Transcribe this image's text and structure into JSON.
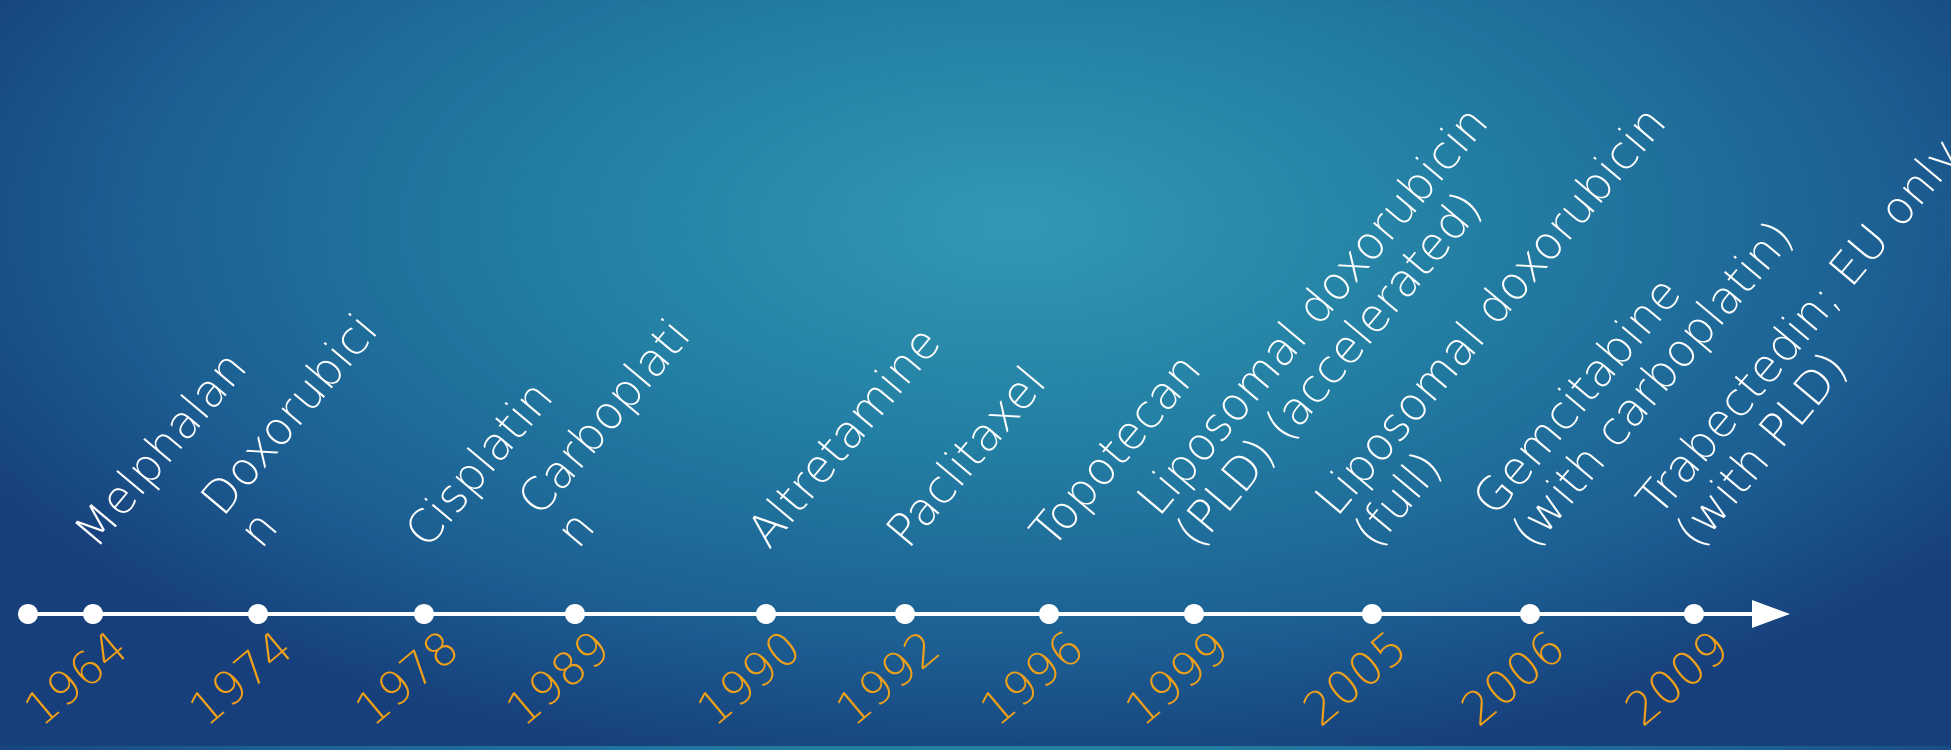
{
  "colors": {
    "line": "#ffffff",
    "label": "#ffffff",
    "year": "#f0a119"
  },
  "events": [
    {
      "year": "1964",
      "label": "Melphalan"
    },
    {
      "year": "1974",
      "label": "Doxorubici\nn"
    },
    {
      "year": "1978",
      "label": "Cisplatin"
    },
    {
      "year": "1989",
      "label": "Carboplati\nn"
    },
    {
      "year": "1990",
      "label": "Altretamine"
    },
    {
      "year": "1992",
      "label": "Paclitaxel"
    },
    {
      "year": "1996",
      "label": "Topotecan"
    },
    {
      "year": "1999",
      "label": "Liposomal doxorubicin\n(PLD) (accelerated)"
    },
    {
      "year": "2005",
      "label": "Liposomal doxorubicin\n(full)"
    },
    {
      "year": "2006",
      "label": "Gemcitabine\n(with carboplatin)"
    },
    {
      "year": "2009",
      "label": "Trabectedin; EU only\n(with PLD)"
    }
  ]
}
